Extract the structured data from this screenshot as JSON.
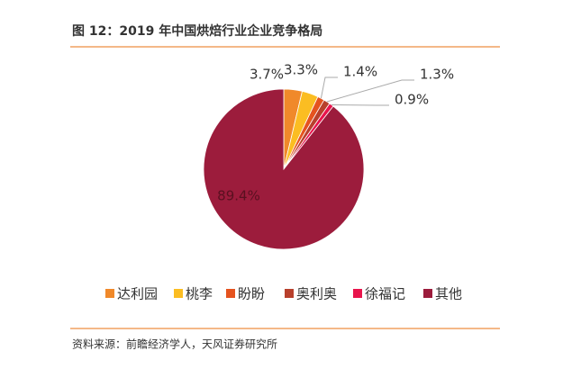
{
  "chart_data": {
    "type": "pie",
    "title": "图 12：2019 年中国烘焙行业企业竞争格局",
    "categories": [
      "达利园",
      "桃李",
      "盼盼",
      "奥利奥",
      "徐福记",
      "其他"
    ],
    "values": [
      3.7,
      3.3,
      1.4,
      1.3,
      0.9,
      89.4
    ],
    "value_labels": [
      "3.7%",
      "3.3%",
      "1.4%",
      "1.3%",
      "0.9%",
      "89.4%"
    ],
    "colors": [
      "#f0892a",
      "#fbbd22",
      "#e5531f",
      "#b8402c",
      "#e8144c",
      "#9c1c3c"
    ],
    "source": "资料来源：前瞻经济学人，天风证券研究所"
  }
}
